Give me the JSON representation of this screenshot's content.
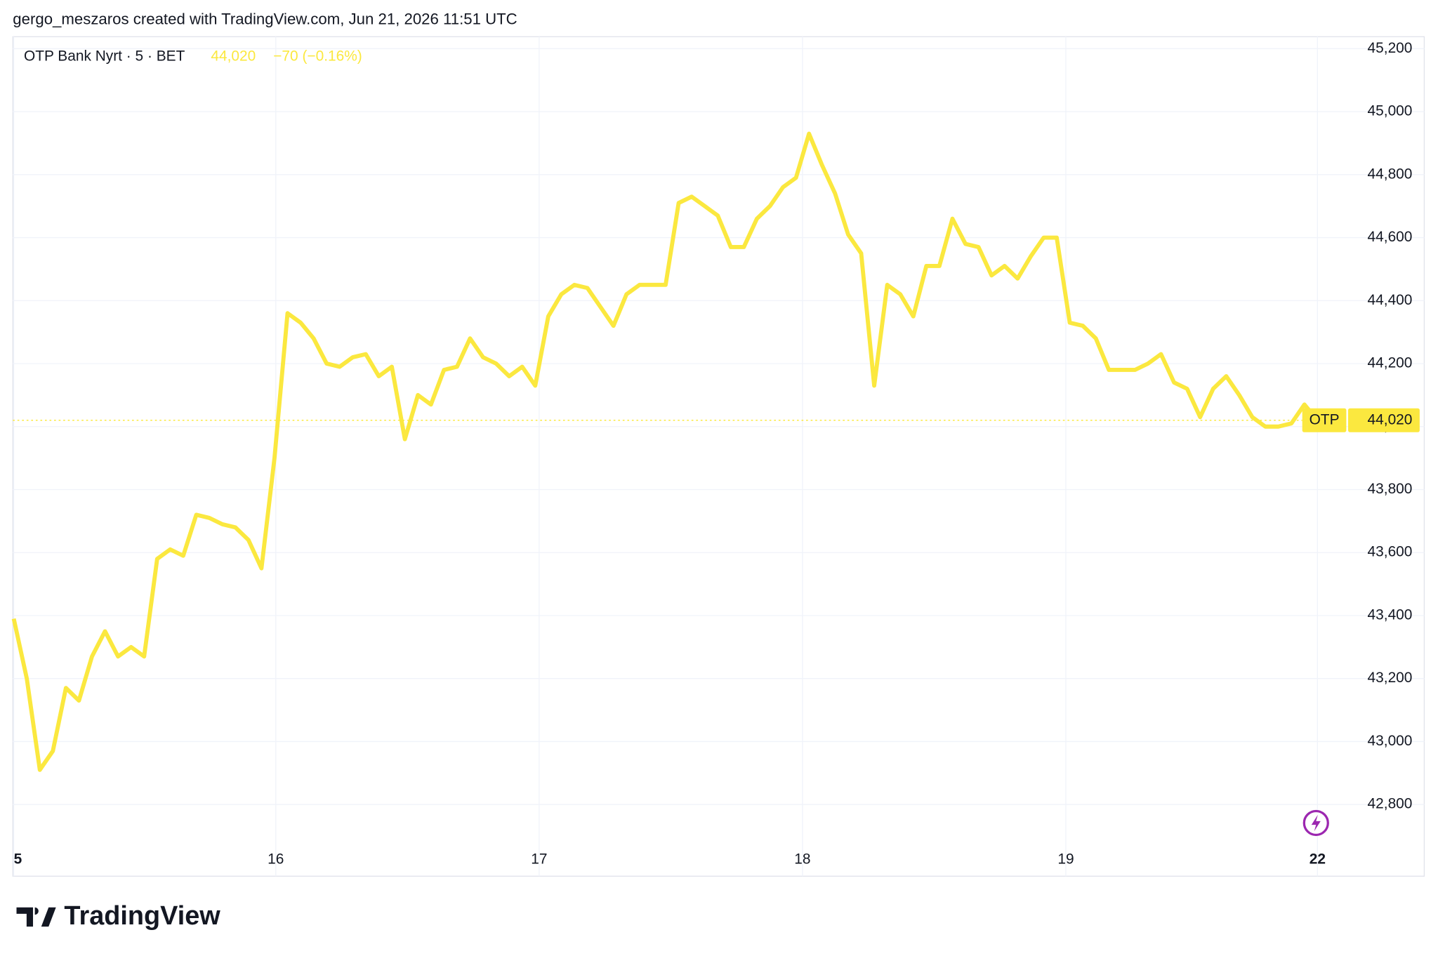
{
  "chart_data": {
    "type": "line",
    "credit": "gergo_meszaros created with TradingView.com, Jun 21, 2026 11:51 UTC",
    "title": "OTP Bank Nyrt · 5 · BET",
    "last_label": "44,020",
    "change": "−70 (−0.16%)",
    "watermark": "TradingView",
    "series": [
      {
        "name": "OTP",
        "color": "#fbe83f",
        "values": [
          43390,
          43200,
          42910,
          42970,
          43170,
          43130,
          43270,
          43350,
          43270,
          43300,
          43270,
          43580,
          43610,
          43590,
          43720,
          43710,
          43690,
          43680,
          43640,
          43550,
          43900,
          44360,
          44330,
          44280,
          44200,
          44190,
          44220,
          44230,
          44160,
          44190,
          43960,
          44100,
          44070,
          44180,
          44190,
          44280,
          44220,
          44200,
          44160,
          44190,
          44130,
          44350,
          44420,
          44450,
          44440,
          44380,
          44320,
          44420,
          44450,
          44450,
          44450,
          44710,
          44730,
          44700,
          44670,
          44570,
          44570,
          44660,
          44700,
          44760,
          44790,
          44930,
          44830,
          44740,
          44610,
          44550,
          44130,
          44450,
          44420,
          44350,
          44510,
          44510,
          44660,
          44580,
          44570,
          44480,
          44510,
          44470,
          44540,
          44600,
          44600,
          44330,
          44320,
          44280,
          44180,
          44180,
          44180,
          44200,
          44230,
          44140,
          44120,
          44030,
          44120,
          44160,
          44100,
          44030,
          44000,
          44000,
          44010,
          44070,
          44020
        ]
      }
    ],
    "xlim": [
      0,
      102
    ],
    "xticks": [
      {
        "value": 0,
        "label": "5"
      },
      {
        "value": 20.1,
        "label": "16"
      },
      {
        "value": 40.3,
        "label": "17"
      },
      {
        "value": 60.5,
        "label": "18"
      },
      {
        "value": 80.7,
        "label": "19"
      },
      {
        "value": 100,
        "label": "22"
      }
    ],
    "ylim": [
      42675,
      45240
    ],
    "yticks": [
      {
        "value": 42800,
        "label": "42,800"
      },
      {
        "value": 43000,
        "label": "43,000"
      },
      {
        "value": 43200,
        "label": "43,200"
      },
      {
        "value": 43400,
        "label": "43,400"
      },
      {
        "value": 43600,
        "label": "43,600"
      },
      {
        "value": 43800,
        "label": "43,800"
      },
      {
        "value": 44000,
        "label": "44,000"
      },
      {
        "value": 44200,
        "label": "44,200"
      },
      {
        "value": 44400,
        "label": "44,400"
      },
      {
        "value": 44600,
        "label": "44,600"
      },
      {
        "value": 44800,
        "label": "44,800"
      },
      {
        "value": 45000,
        "label": "45,000"
      },
      {
        "value": 45200,
        "label": "45,200"
      }
    ],
    "grid": true
  }
}
